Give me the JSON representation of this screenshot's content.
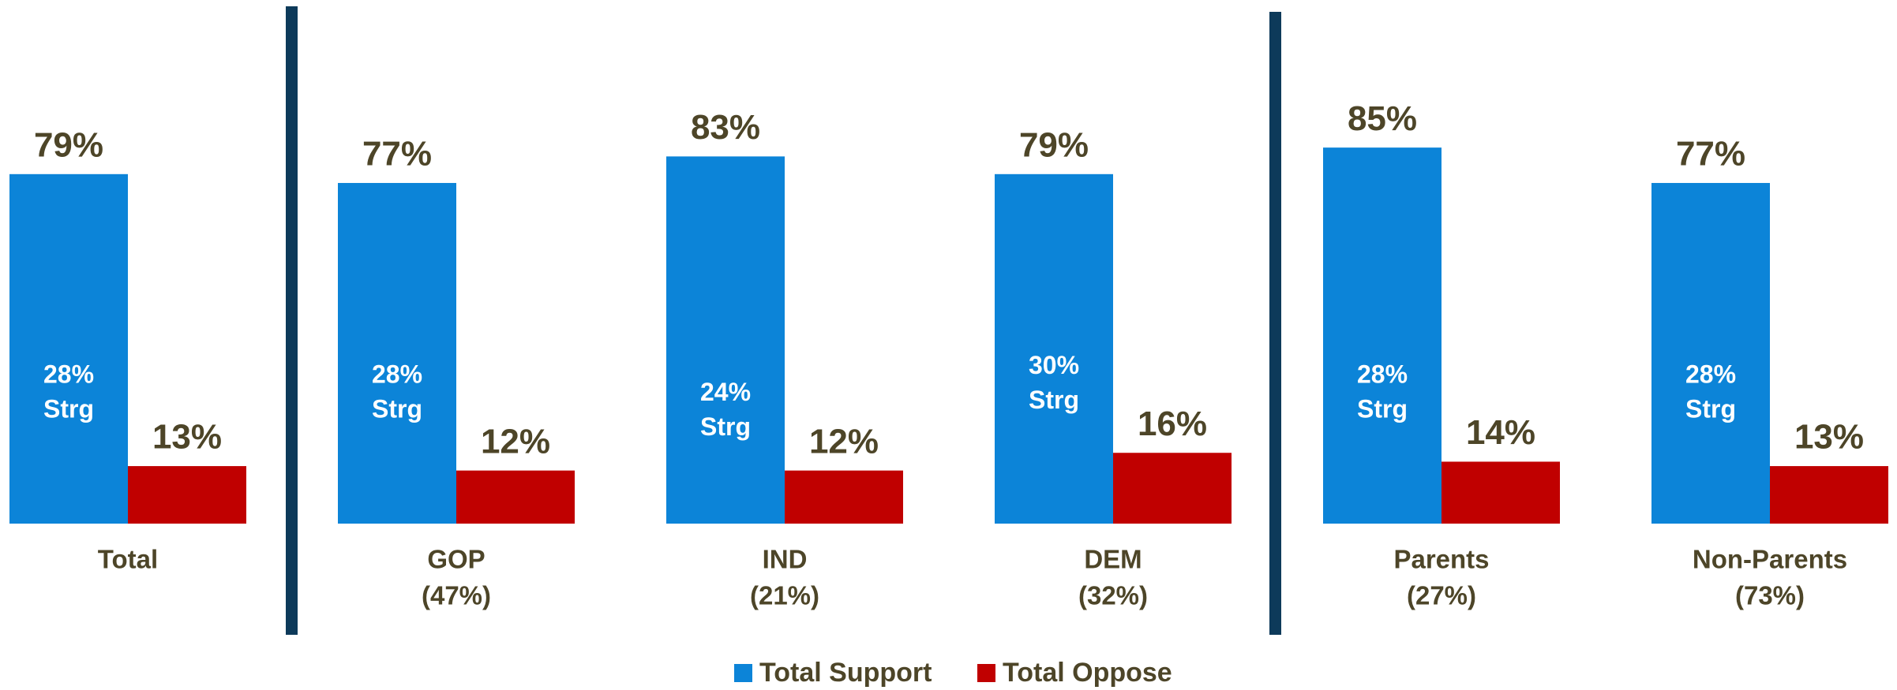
{
  "chart_data": {
    "type": "bar",
    "categories": [
      [
        "Total"
      ],
      [
        "GOP",
        "(47%)"
      ],
      [
        "IND",
        "(21%)"
      ],
      [
        "DEM",
        "(32%)"
      ],
      [
        "Parents",
        "(27%)"
      ],
      [
        "Non-Parents",
        "(73%)"
      ]
    ],
    "series": [
      {
        "name": "Total Support",
        "color": "#0c84d8",
        "values": [
          79,
          77,
          83,
          79,
          85,
          77
        ],
        "value_labels": [
          "79%",
          "77%",
          "83%",
          "79%",
          "85%",
          "77%"
        ]
      },
      {
        "name": "Total Oppose",
        "color": "#c00000",
        "values": [
          13,
          12,
          12,
          16,
          14,
          13
        ],
        "value_labels": [
          "13%",
          "12%",
          "12%",
          "16%",
          "14%",
          "13%"
        ]
      }
    ],
    "strong_support": {
      "name": "Strg",
      "values": [
        28,
        28,
        24,
        30,
        28,
        28
      ],
      "value_labels": [
        "28%",
        "28%",
        "24%",
        "30%",
        "28%",
        "28%"
      ]
    },
    "ylim": [
      0,
      100
    ]
  }
}
